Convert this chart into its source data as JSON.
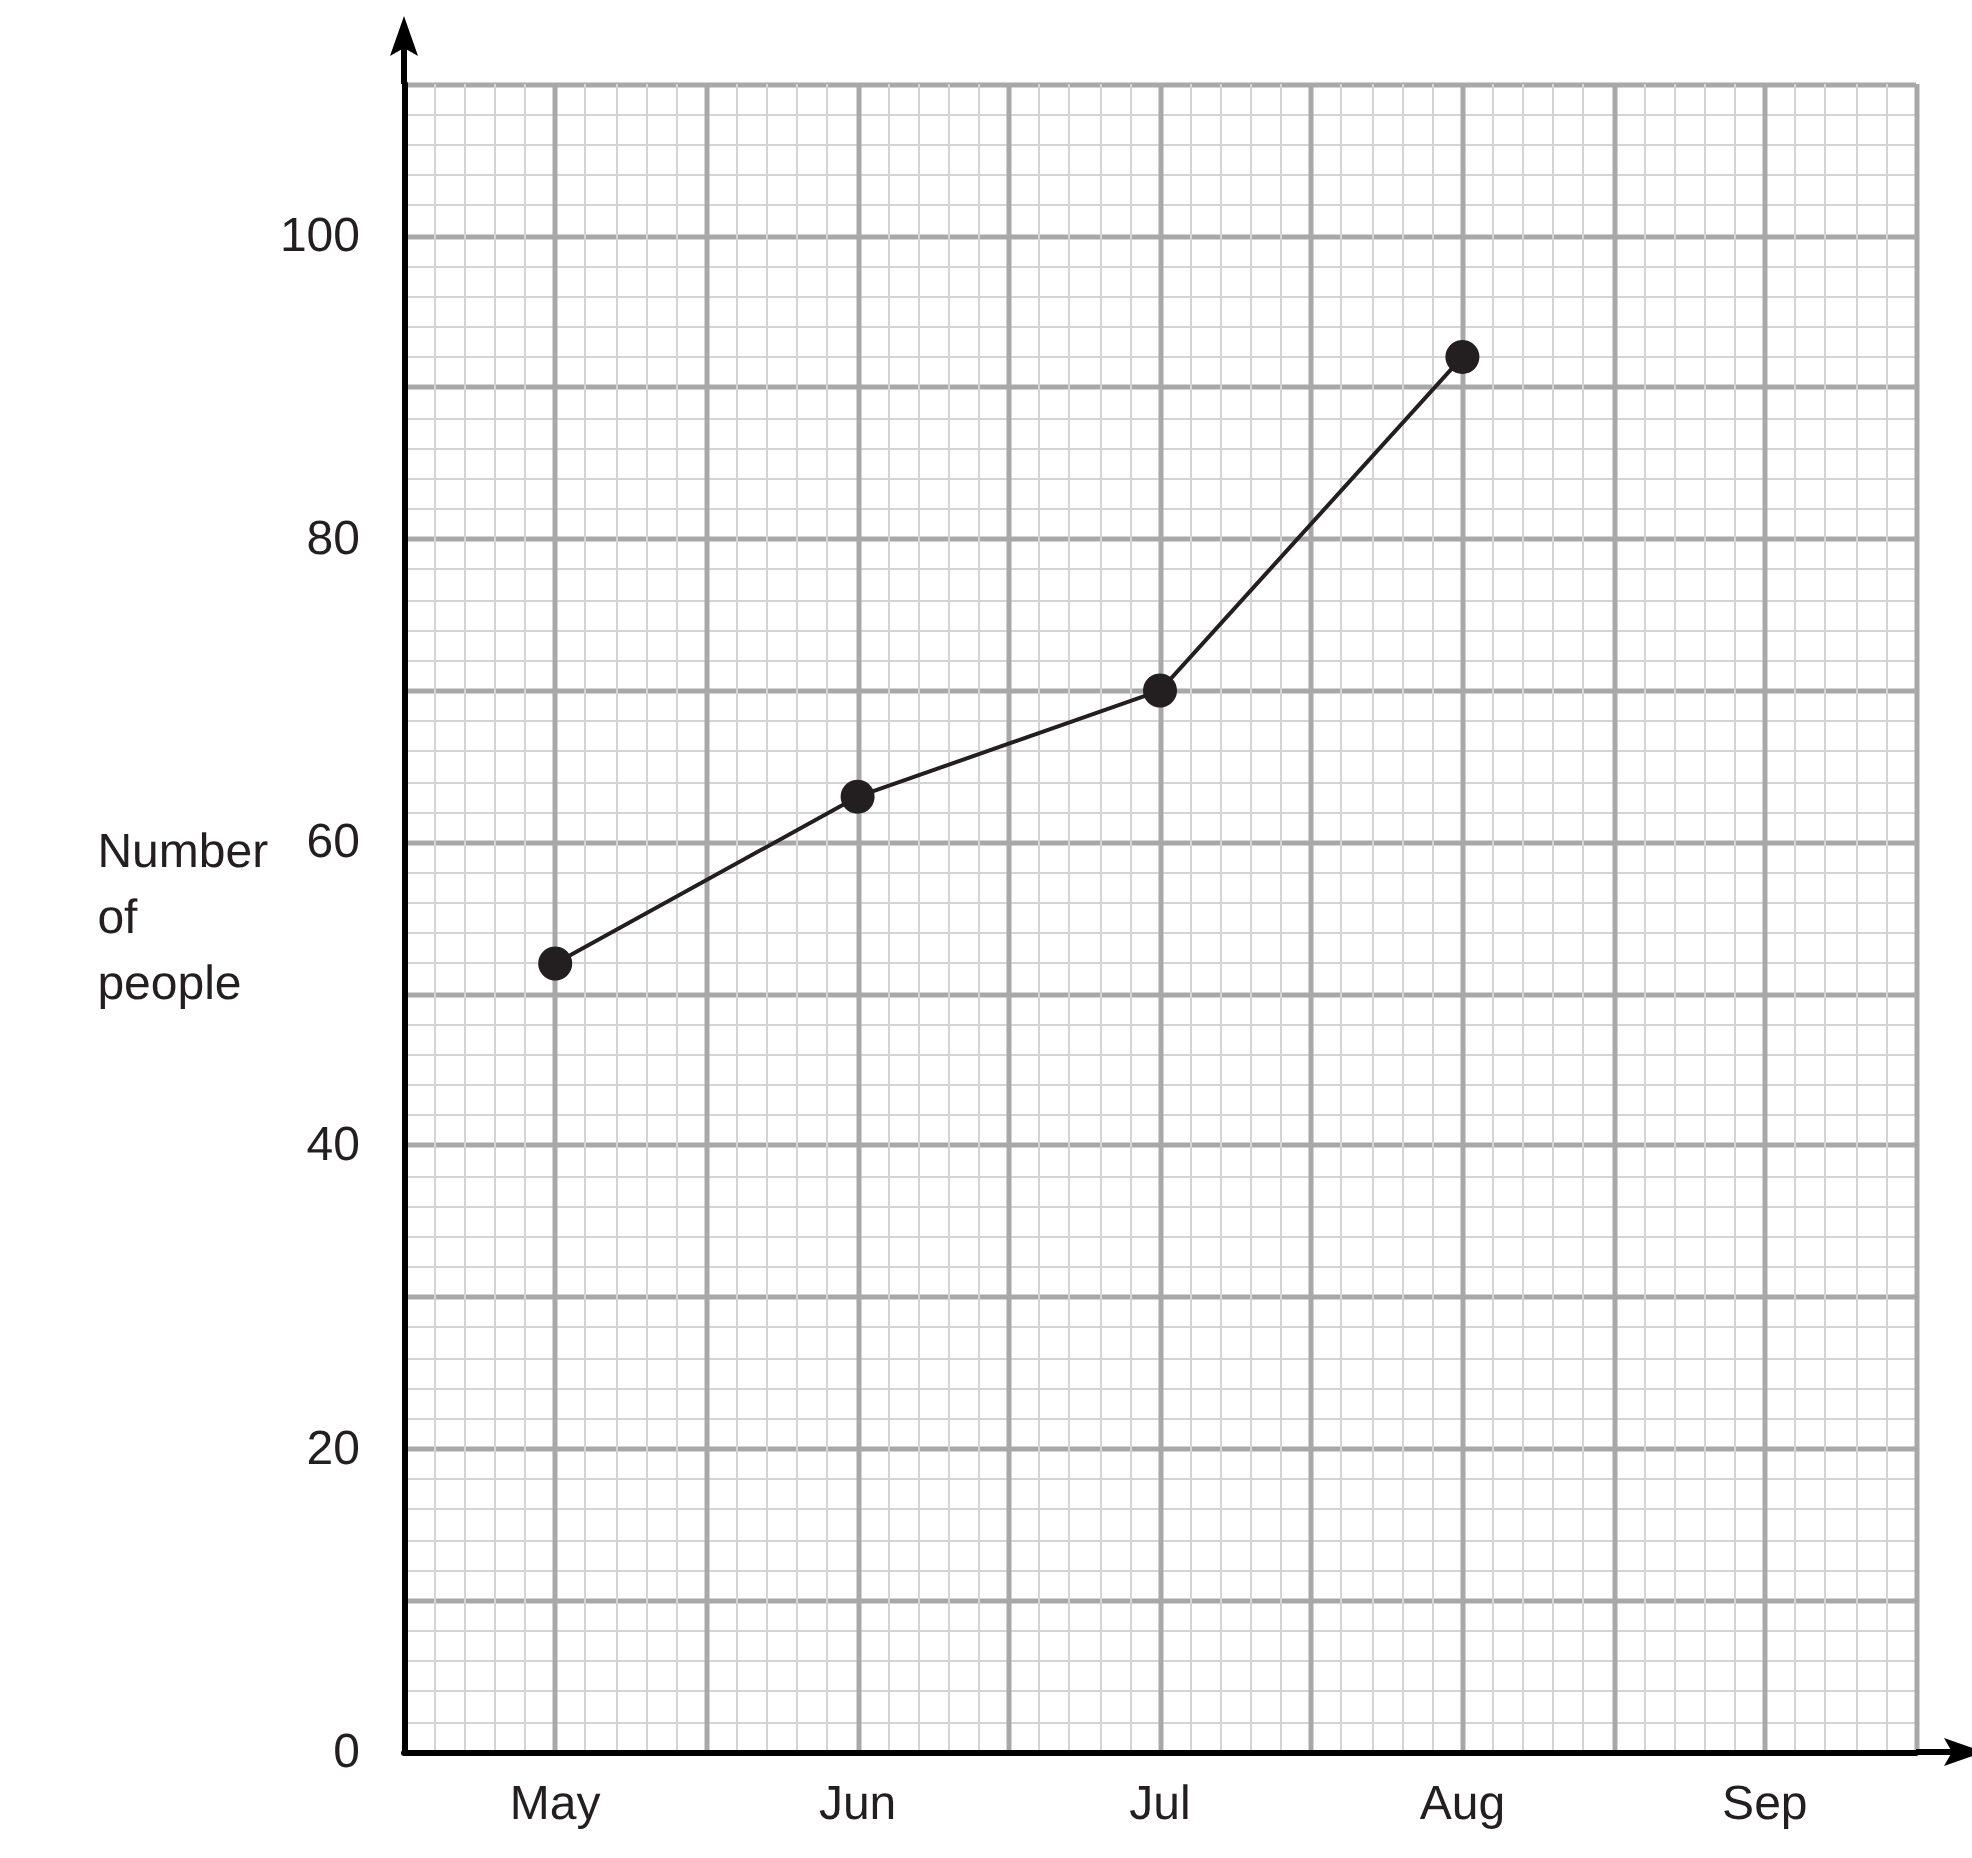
{
  "chart_data": {
    "type": "line",
    "ylabel": "Number of people",
    "categories": [
      "May",
      "Jun",
      "Jul",
      "Aug",
      "Sep"
    ],
    "series": [
      {
        "color": "#231f20",
        "values": [
          52,
          63,
          70,
          92,
          null
        ]
      }
    ],
    "ylim": [
      0,
      110
    ],
    "yticks": [
      0,
      {
        "value": 10,
        "label": null
      },
      20,
      {
        "value": 30,
        "label": null
      },
      40,
      {
        "value": 50,
        "label": null
      },
      60,
      {
        "value": 70,
        "label": null
      },
      80,
      {
        "value": 90,
        "label": null
      },
      100,
      {
        "value": 110,
        "label": null
      }
    ],
    "grid": true,
    "marker": "circle",
    "line_style": "solid"
  }
}
